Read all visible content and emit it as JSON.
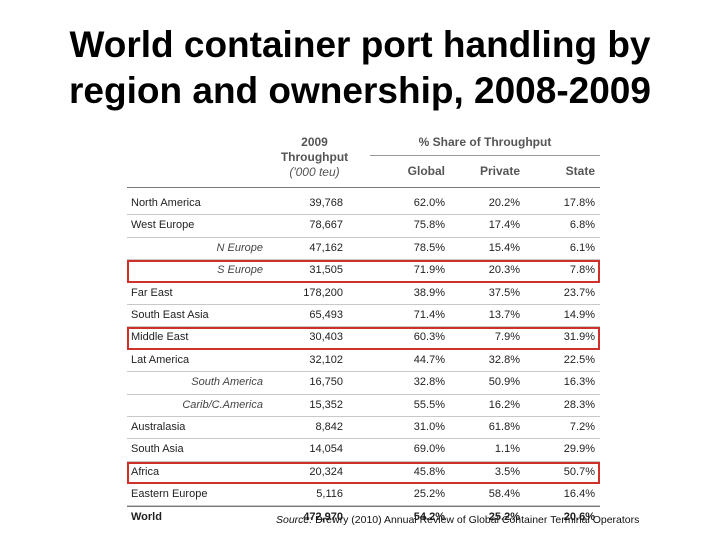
{
  "title": {
    "line1": "World container port handling by",
    "line2": "region and ownership, 2008-2009"
  },
  "table": {
    "header": {
      "throughput_line1": "2009",
      "throughput_line2": "Throughput",
      "throughput_unit": "('000 teu)",
      "share_group": "% Share of Throughput",
      "global": "Global",
      "private": "Private",
      "state": "State"
    },
    "rows": [
      {
        "region": "North America",
        "throughput": "39,768",
        "global": "62.0%",
        "private": "20.2%",
        "state": "17.8%",
        "sub": false,
        "highlight": false
      },
      {
        "region": "West Europe",
        "throughput": "78,667",
        "global": "75.8%",
        "private": "17.4%",
        "state": "6.8%",
        "sub": false,
        "highlight": false
      },
      {
        "region": "N Europe",
        "throughput": "47,162",
        "global": "78.5%",
        "private": "15.4%",
        "state": "6.1%",
        "sub": true,
        "highlight": false
      },
      {
        "region": "S Europe",
        "throughput": "31,505",
        "global": "71.9%",
        "private": "20.3%",
        "state": "7.8%",
        "sub": true,
        "highlight": true
      },
      {
        "region": "Far East",
        "throughput": "178,200",
        "global": "38.9%",
        "private": "37.5%",
        "state": "23.7%",
        "sub": false,
        "highlight": false
      },
      {
        "region": "South East Asia",
        "throughput": "65,493",
        "global": "71.4%",
        "private": "13.7%",
        "state": "14.9%",
        "sub": false,
        "highlight": false
      },
      {
        "region": "Middle East",
        "throughput": "30,403",
        "global": "60.3%",
        "private": "7.9%",
        "state": "31.9%",
        "sub": false,
        "highlight": true
      },
      {
        "region": "Lat America",
        "throughput": "32,102",
        "global": "44.7%",
        "private": "32.8%",
        "state": "22.5%",
        "sub": false,
        "highlight": false
      },
      {
        "region": "South America",
        "throughput": "16,750",
        "global": "32.8%",
        "private": "50.9%",
        "state": "16.3%",
        "sub": true,
        "highlight": false
      },
      {
        "region": "Carib/C.America",
        "throughput": "15,352",
        "global": "55.5%",
        "private": "16.2%",
        "state": "28.3%",
        "sub": true,
        "highlight": false
      },
      {
        "region": "Australasia",
        "throughput": "8,842",
        "global": "31.0%",
        "private": "61.8%",
        "state": "7.2%",
        "sub": false,
        "highlight": false
      },
      {
        "region": "South Asia",
        "throughput": "14,054",
        "global": "69.0%",
        "private": "1.1%",
        "state": "29.9%",
        "sub": false,
        "highlight": false
      },
      {
        "region": "Africa",
        "throughput": "20,324",
        "global": "45.8%",
        "private": "3.5%",
        "state": "50.7%",
        "sub": false,
        "highlight": true
      },
      {
        "region": "Eastern Europe",
        "throughput": "5,116",
        "global": "25.2%",
        "private": "58.4%",
        "state": "16.4%",
        "sub": false,
        "highlight": false
      },
      {
        "region": "World",
        "throughput": "472,970",
        "global": "54.2%",
        "private": "25.2%",
        "state": "20.6%",
        "sub": false,
        "highlight": false,
        "total": true
      }
    ]
  },
  "source": {
    "label": "Source:",
    "text": " Drewry (2010) Annual Review of Global Container Terminal Operators"
  },
  "colors": {
    "highlight_border": "#d0302a"
  }
}
